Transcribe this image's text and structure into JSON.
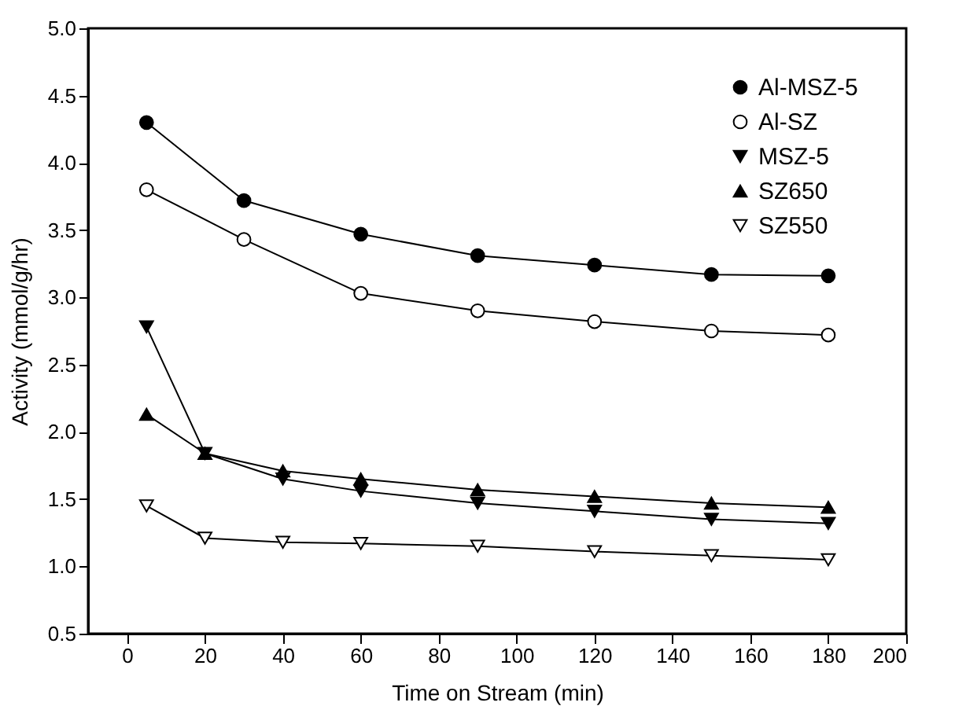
{
  "chart_data": {
    "type": "line",
    "xlabel": "Time on Stream (min)",
    "ylabel": "Activity (mmol/g/hr)",
    "xlim": [
      -10,
      200
    ],
    "xticks": [
      0,
      20,
      40,
      60,
      80,
      100,
      120,
      140,
      160,
      180,
      200
    ],
    "ylim": [
      0.5,
      5.0
    ],
    "yticks": [
      {
        "value": 0.5,
        "label": "0.5"
      },
      {
        "value": 1.0,
        "label": "1.0"
      },
      1.5,
      {
        "value": 2.0,
        "label": "2.0"
      },
      2.5,
      {
        "value": 3.0,
        "label": "3.0"
      },
      3.5,
      {
        "value": 4.0,
        "label": "4.0"
      },
      4.5,
      {
        "value": 5.0,
        "label": "5.0"
      }
    ],
    "grid": false,
    "legend": "top right",
    "line_style": "solid",
    "series": [
      {
        "name": "Al-MSZ-5",
        "color": "#000000",
        "marker": "circle",
        "x": [
          5,
          30,
          60,
          90,
          120,
          150,
          180
        ],
        "values": [
          4.3,
          3.72,
          3.47,
          3.31,
          3.24,
          3.17,
          3.16
        ]
      },
      {
        "name": "Al-SZ",
        "color": "#000000",
        "marker": "circle-open",
        "x": [
          5,
          30,
          60,
          90,
          120,
          150,
          180
        ],
        "values": [
          3.8,
          3.43,
          3.03,
          2.9,
          2.82,
          2.75,
          2.72
        ]
      },
      {
        "name": "MSZ-5",
        "color": "#000000",
        "marker": "triangle-down",
        "x": [
          5,
          20,
          40,
          60,
          90,
          120,
          150,
          180
        ],
        "values": [
          2.78,
          1.84,
          1.65,
          1.56,
          1.47,
          1.41,
          1.35,
          1.32
        ]
      },
      {
        "name": "SZ650",
        "color": "#000000",
        "marker": "triangle",
        "x": [
          5,
          20,
          40,
          60,
          90,
          120,
          150,
          180
        ],
        "values": [
          2.13,
          1.84,
          1.71,
          1.65,
          1.57,
          1.52,
          1.47,
          1.44
        ]
      },
      {
        "name": "SZ550",
        "color": "#000000",
        "marker": "triangle-down-open",
        "x": [
          5,
          20,
          40,
          60,
          90,
          120,
          150,
          180
        ],
        "values": [
          1.45,
          1.21,
          1.18,
          1.17,
          1.15,
          1.11,
          1.08,
          1.05
        ]
      }
    ]
  }
}
